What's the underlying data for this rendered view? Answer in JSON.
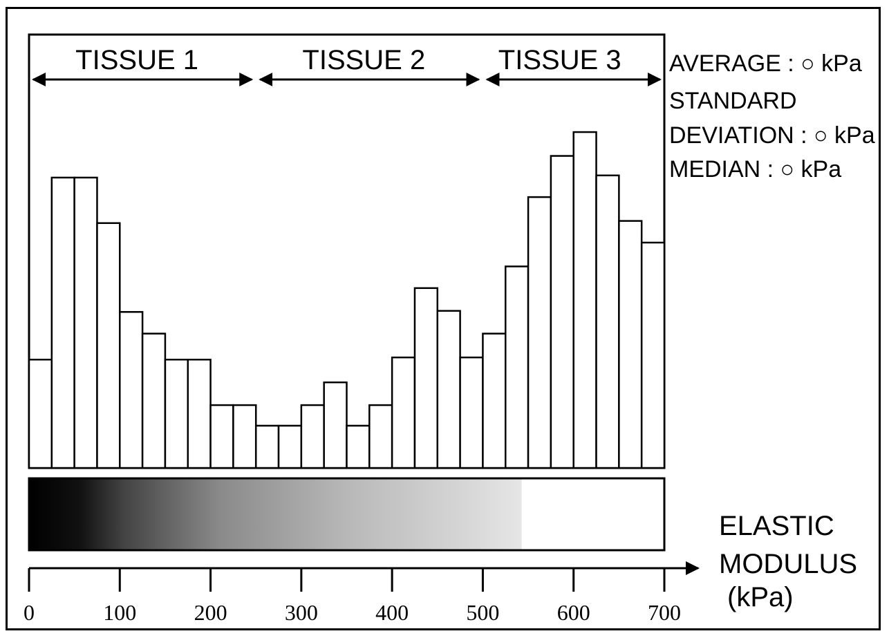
{
  "chart_data": {
    "type": "bar",
    "x": [
      0,
      25,
      50,
      75,
      100,
      125,
      150,
      175,
      200,
      225,
      250,
      275,
      300,
      325,
      350,
      375,
      400,
      425,
      450,
      475,
      500,
      525,
      550,
      575,
      600,
      625,
      650,
      675
    ],
    "bin_width": 25,
    "values": [
      5,
      13.4,
      13.4,
      11.3,
      7.2,
      6.2,
      5,
      5,
      2.9,
      2.9,
      1.95,
      1.95,
      2.9,
      3.95,
      1.95,
      2.9,
      5.1,
      8.3,
      7.25,
      5.1,
      6.2,
      9.3,
      12.5,
      14.4,
      15.5,
      13.5,
      11.4,
      10.4
    ],
    "xlabel": "ELASTIC\nMODULUS\n(kPa)",
    "xlabel_lines": [
      "ELASTIC",
      "MODULUS",
      "(kPa)"
    ],
    "xticks": [
      "0",
      "100",
      "200",
      "300",
      "400",
      "500",
      "600",
      "700"
    ],
    "xlim": [
      0,
      700
    ],
    "ylim": [
      0,
      20
    ],
    "grid": false,
    "regions": [
      {
        "label": "TISSUE 1",
        "from": 0,
        "to": 250
      },
      {
        "label": "TISSUE 2",
        "from": 250,
        "to": 500
      },
      {
        "label": "TISSUE 3",
        "from": 500,
        "to": 700
      }
    ],
    "stats": [
      {
        "label": "AVERAGE : ○ kPa"
      },
      {
        "label": "STANDARD"
      },
      {
        "label": "DEVIATION : ○ kPa"
      },
      {
        "label": "MEDIAN : ○ kPa"
      }
    ],
    "colorbar": {
      "from_color": "#000000",
      "to_color": "#ffffff",
      "white_from": 540
    }
  }
}
